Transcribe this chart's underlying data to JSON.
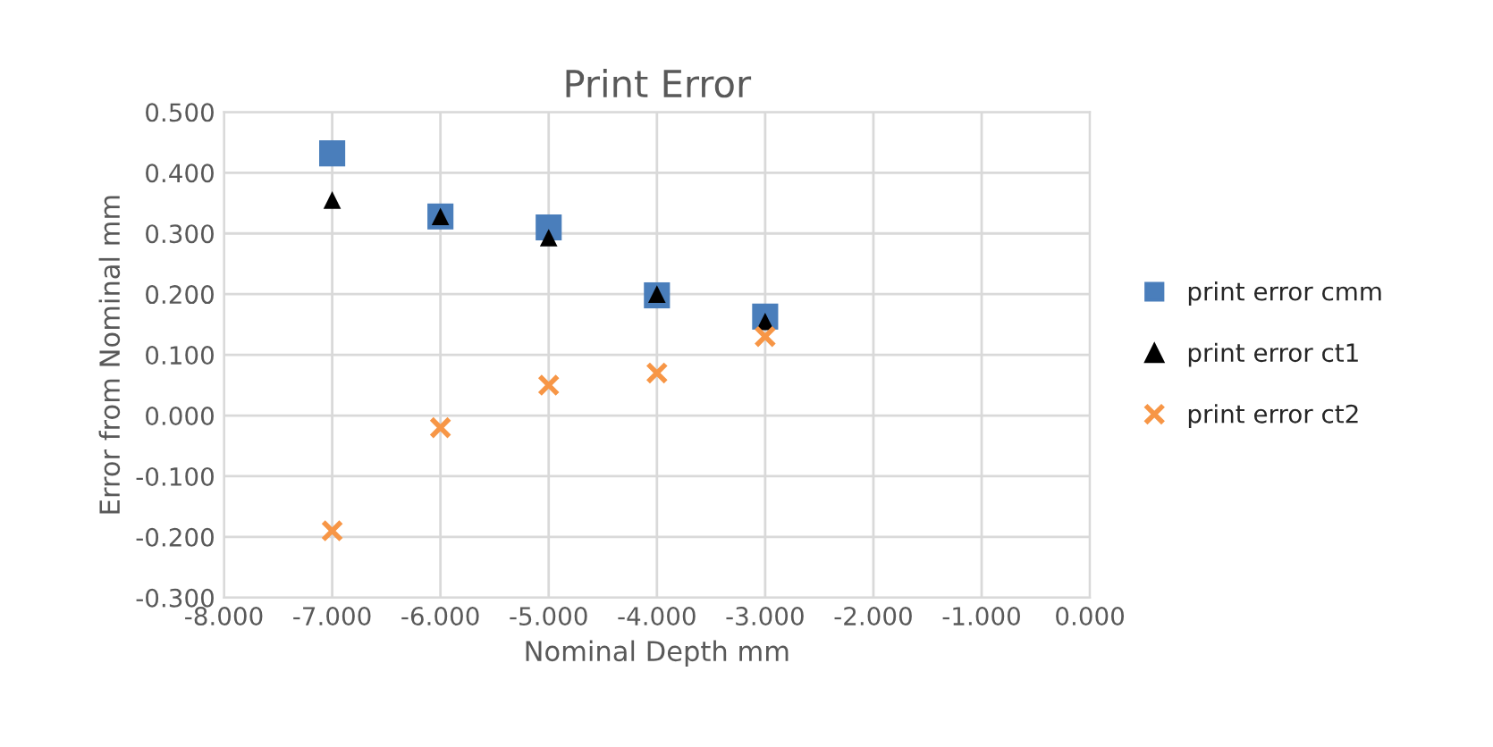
{
  "chart_data": {
    "type": "scatter",
    "title": "Print Error",
    "xlabel": "Nominal Depth mm",
    "ylabel": "Error from Nominal mm",
    "x": [
      -7,
      -6,
      -5,
      -4,
      -3
    ],
    "series": [
      {
        "name": "print error cmm",
        "color": "#4a7ebb",
        "marker": "square",
        "values": [
          0.432,
          0.328,
          0.31,
          0.198,
          0.163
        ]
      },
      {
        "name": "print error ct1",
        "color": "#000000",
        "marker": "triangle",
        "values": [
          0.355,
          0.328,
          0.293,
          0.2,
          0.155
        ]
      },
      {
        "name": "print error ct2",
        "color": "#f79646",
        "marker": "cross",
        "values": [
          -0.19,
          -0.02,
          0.05,
          0.07,
          0.13
        ]
      }
    ],
    "xlim": [
      -8,
      0
    ],
    "xticks": [
      {
        "value": -8,
        "label": "-8.000"
      },
      {
        "value": -7,
        "label": "-7.000"
      },
      {
        "value": -6,
        "label": "-6.000"
      },
      {
        "value": -5,
        "label": "-5.000"
      },
      {
        "value": -4,
        "label": "-4.000"
      },
      {
        "value": -3,
        "label": "-3.000"
      },
      {
        "value": -2,
        "label": "-2.000"
      },
      {
        "value": -1,
        "label": "-1.000"
      },
      {
        "value": 0,
        "label": "0.000"
      }
    ],
    "ylim": [
      -0.3,
      0.5
    ],
    "yticks": [
      {
        "value": -0.3,
        "label": "-0.300"
      },
      {
        "value": -0.2,
        "label": "-0.200"
      },
      {
        "value": -0.1,
        "label": "-0.100"
      },
      {
        "value": 0,
        "label": "0.000"
      },
      {
        "value": 0.1,
        "label": "0.100"
      },
      {
        "value": 0.2,
        "label": "0.200"
      },
      {
        "value": 0.3,
        "label": "0.300"
      },
      {
        "value": 0.4,
        "label": "0.400"
      },
      {
        "value": 0.5,
        "label": "0.500"
      }
    ],
    "grid": true,
    "legend": "right"
  }
}
